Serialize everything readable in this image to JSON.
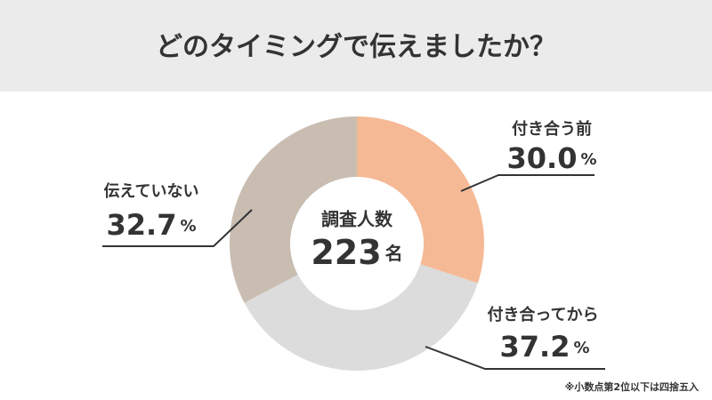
{
  "chart_data": {
    "type": "donut",
    "title": "どのタイミングで伝えましたか？",
    "categories": [
      "付き合う前",
      "付き合ってから",
      "伝えていない"
    ],
    "values": [
      30.0,
      37.2,
      32.7
    ],
    "value_labels": [
      "30.0",
      "37.2",
      "32.7"
    ],
    "unit": "%",
    "colors": [
      "#f5b995",
      "#dcdcdc",
      "#c9bdb2"
    ],
    "center_label": "調査人数",
    "sample_size": 223,
    "sample_unit": "名",
    "note": "※小数点第2位以下は四捨五入"
  }
}
